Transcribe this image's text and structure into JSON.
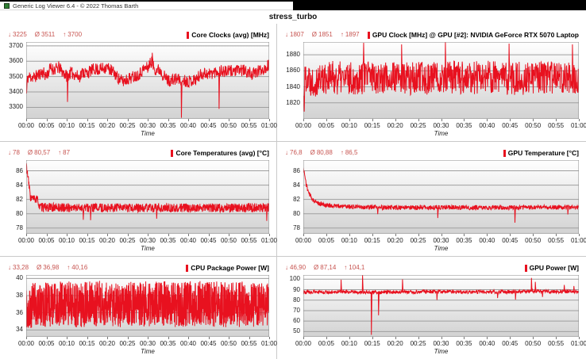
{
  "window": {
    "title": "Generic Log Viewer 6.4 - © 2022 Thomas Barth"
  },
  "heading": "stress_turbo",
  "symbols": {
    "min": "↓",
    "avg": "Ø",
    "max": "↑"
  },
  "colors": {
    "accent_red": "#e8111f",
    "stats_text": "#c75450",
    "gridline": "#9f9f9f",
    "plot_border": "#8a8a8a",
    "band_top": "#ffffff",
    "band_bottom": "#d2d2d2"
  },
  "time_axis": {
    "label": "Time",
    "ticks": [
      "00:00",
      "00:05",
      "00:10",
      "00:15",
      "00:20",
      "00:25",
      "00:30",
      "00:35",
      "00:40",
      "00:45",
      "00:50",
      "00:55",
      "01:00"
    ]
  },
  "charts": [
    {
      "title": "Core Clocks (avg) [MHz]",
      "stats": {
        "min": "3225",
        "avg": "3511",
        "max": "3700"
      },
      "chart_data": {
        "type": "line",
        "title": "Core Clocks (avg) [MHz]",
        "xlabel": "Time",
        "x_ticks": [
          "00:00",
          "00:05",
          "00:10",
          "00:15",
          "00:20",
          "00:25",
          "00:30",
          "00:35",
          "00:40",
          "00:45",
          "00:50",
          "00:55",
          "01:00"
        ],
        "x_range_minutes": [
          0,
          60
        ],
        "y_ticks": [
          3300,
          3400,
          3500,
          3600,
          3700
        ],
        "y_range": [
          3225,
          3725
        ],
        "stats": {
          "min": 3225,
          "avg": 3511,
          "max": 3700
        },
        "series_shape": {
          "base": [
            [
              0,
              3440
            ],
            [
              0.5,
              3500
            ],
            [
              2,
              3495
            ],
            [
              4,
              3530
            ],
            [
              5,
              3505
            ],
            [
              6,
              3555
            ],
            [
              7,
              3545
            ],
            [
              8,
              3560
            ],
            [
              9,
              3530
            ],
            [
              10,
              3505
            ],
            [
              11,
              3525
            ],
            [
              12,
              3515
            ],
            [
              13,
              3495
            ],
            [
              14,
              3530
            ],
            [
              15,
              3520
            ],
            [
              16,
              3540
            ],
            [
              17,
              3550
            ],
            [
              18,
              3545
            ],
            [
              19,
              3555
            ],
            [
              20,
              3560
            ],
            [
              21,
              3540
            ],
            [
              22,
              3515
            ],
            [
              23,
              3480
            ],
            [
              24,
              3470
            ],
            [
              25,
              3485
            ],
            [
              26,
              3495
            ],
            [
              27,
              3505
            ],
            [
              28,
              3520
            ],
            [
              29,
              3550
            ],
            [
              30,
              3560
            ],
            [
              31,
              3600
            ],
            [
              31.6,
              3555
            ],
            [
              32,
              3545
            ],
            [
              33,
              3545
            ],
            [
              34,
              3505
            ],
            [
              35,
              3475
            ],
            [
              36,
              3475
            ],
            [
              37,
              3485
            ],
            [
              38,
              3480
            ],
            [
              39,
              3475
            ],
            [
              40,
              3470
            ],
            [
              41,
              3475
            ],
            [
              42,
              3485
            ],
            [
              43,
              3510
            ],
            [
              44,
              3525
            ],
            [
              45,
              3515
            ],
            [
              46,
              3525
            ],
            [
              47,
              3535
            ],
            [
              48,
              3540
            ],
            [
              49,
              3530
            ],
            [
              50,
              3535
            ],
            [
              51,
              3540
            ],
            [
              52,
              3535
            ],
            [
              53,
              3545
            ],
            [
              54,
              3535
            ],
            [
              55,
              3525
            ],
            [
              56,
              3515
            ],
            [
              57,
              3530
            ],
            [
              58,
              3545
            ],
            [
              59,
              3555
            ],
            [
              60,
              3580
            ]
          ],
          "noise_amplitude": 40,
          "spikes": [
            [
              0.1,
              3390
            ],
            [
              10.2,
              3335
            ],
            [
              31.1,
              3655
            ],
            [
              38.3,
              3232
            ],
            [
              47.6,
              3290
            ]
          ],
          "samples": 800,
          "seed": 11,
          "clamp": [
            3225,
            3700
          ]
        }
      }
    },
    {
      "title": "GPU Clock [MHz] @ GPU [#2]: NVIDIA GeForce RTX 5070 Laptop",
      "stats": {
        "min": "1807",
        "avg": "1851",
        "max": "1897"
      },
      "chart_data": {
        "type": "line",
        "title": "GPU Clock [MHz] @ GPU [#2]: NVIDIA GeForce RTX 5070 Laptop",
        "xlabel": "Time",
        "x_ticks": [
          "00:00",
          "00:05",
          "00:10",
          "00:15",
          "00:20",
          "00:25",
          "00:30",
          "00:35",
          "00:40",
          "00:45",
          "00:50",
          "00:55",
          "01:00"
        ],
        "x_range_minutes": [
          0,
          60
        ],
        "y_ticks": [
          1820,
          1840,
          1860,
          1880
        ],
        "y_range": [
          1800,
          1896
        ],
        "stats": {
          "min": 1807,
          "avg": 1851,
          "max": 1897
        },
        "series_shape": {
          "base": [
            [
              0,
              1835
            ],
            [
              0.5,
              1855
            ],
            [
              2,
              1848
            ],
            [
              5,
              1852
            ],
            [
              10,
              1850
            ],
            [
              15,
              1853
            ],
            [
              20,
              1851
            ],
            [
              25,
              1850
            ],
            [
              30,
              1853
            ],
            [
              35,
              1851
            ],
            [
              40,
              1852
            ],
            [
              45,
              1850
            ],
            [
              50,
              1851
            ],
            [
              55,
              1852
            ],
            [
              60,
              1852
            ]
          ],
          "noise_amplitude": 21,
          "spikes": [
            [
              0.2,
              1809
            ],
            [
              13.1,
              1895
            ],
            [
              21.4,
              1893
            ],
            [
              30.9,
              1896
            ],
            [
              44.8,
              1894
            ],
            [
              58.6,
              1893
            ]
          ],
          "samples": 900,
          "seed": 22,
          "clamp": [
            1807,
            1897
          ]
        }
      }
    },
    {
      "title": "Core Temperatures (avg) [°C]",
      "stats": {
        "min": "78",
        "avg": "80,57",
        "max": "87"
      },
      "chart_data": {
        "type": "line",
        "title": "Core Temperatures (avg) [°C]",
        "xlabel": "Time",
        "x_ticks": [
          "00:00",
          "00:05",
          "00:10",
          "00:15",
          "00:20",
          "00:25",
          "00:30",
          "00:35",
          "00:40",
          "00:45",
          "00:50",
          "00:55",
          "01:00"
        ],
        "x_range_minutes": [
          0,
          60
        ],
        "y_ticks": [
          78,
          80,
          82,
          84,
          86
        ],
        "y_range": [
          77.2,
          87.5
        ],
        "stats": {
          "min": 78,
          "avg": 80.57,
          "max": 87
        },
        "series_shape": {
          "base": [
            [
              0,
              87
            ],
            [
              0.4,
              85.2
            ],
            [
              0.8,
              83.5
            ],
            [
              1.1,
              82.2
            ],
            [
              2.9,
              81.9
            ],
            [
              3.3,
              80.9
            ],
            [
              10,
              80.85
            ],
            [
              30,
              80.8
            ],
            [
              60,
              80.85
            ]
          ],
          "noise_amplitude": 0.62,
          "spikes": [
            [
              14.1,
              79.15
            ],
            [
              15.9,
              79.1
            ],
            [
              32.2,
              79.3
            ],
            [
              59.4,
              79.0
            ]
          ],
          "samples": 1000,
          "seed": 33,
          "clamp": [
            78.9,
            87
          ]
        }
      }
    },
    {
      "title": "GPU Temperature [°C]",
      "stats": {
        "min": "76,8",
        "avg": "80,88",
        "max": "86,5"
      },
      "chart_data": {
        "type": "line",
        "title": "GPU Temperature [°C]",
        "xlabel": "Time",
        "x_ticks": [
          "00:00",
          "00:05",
          "00:10",
          "00:15",
          "00:20",
          "00:25",
          "00:30",
          "00:35",
          "00:40",
          "00:45",
          "00:50",
          "00:55",
          "01:00"
        ],
        "x_range_minutes": [
          0,
          60
        ],
        "y_ticks": [
          78,
          80,
          82,
          84,
          86
        ],
        "y_range": [
          77.2,
          87.5
        ],
        "stats": {
          "min": 76.8,
          "avg": 80.88,
          "max": 86.5
        },
        "series_shape": {
          "base": [
            [
              0,
              86.5
            ],
            [
              0.3,
              85.4
            ],
            [
              0.7,
              83.9
            ],
            [
              1.2,
              82.9
            ],
            [
              1.8,
              82.2
            ],
            [
              2.5,
              81.7
            ],
            [
              3.5,
              81.4
            ],
            [
              5,
              81.2
            ],
            [
              8,
              81.05
            ],
            [
              12,
              80.95
            ],
            [
              20,
              80.85
            ],
            [
              30,
              80.9
            ],
            [
              40,
              80.85
            ],
            [
              50,
              80.9
            ],
            [
              60,
              80.9
            ]
          ],
          "noise_amplitude": 0.32,
          "spikes": [
            [
              16.2,
              79.95
            ],
            [
              29.3,
              79.4
            ],
            [
              46.1,
              78.75
            ],
            [
              57.6,
              79.9
            ]
          ],
          "samples": 1000,
          "seed": 44,
          "clamp": [
            76.8,
            86.5
          ]
        }
      }
    },
    {
      "title": "CPU Package Power [W]",
      "stats": {
        "min": "33,28",
        "avg": "36,98",
        "max": "40,16"
      },
      "chart_data": {
        "type": "line",
        "title": "CPU Package Power [W]",
        "xlabel": "Time",
        "x_ticks": [
          "00:00",
          "00:05",
          "00:10",
          "00:15",
          "00:20",
          "00:25",
          "00:30",
          "00:35",
          "00:40",
          "00:45",
          "00:50",
          "00:55",
          "01:00"
        ],
        "x_range_minutes": [
          0,
          60
        ],
        "y_ticks": [
          34,
          36,
          38,
          40
        ],
        "y_range": [
          33.2,
          40.4
        ],
        "stats": {
          "min": 33.28,
          "avg": 36.98,
          "max": 40.16
        },
        "series_shape": {
          "base": [
            [
              0,
              36.6
            ],
            [
              3,
              37
            ],
            [
              6,
              36.9
            ],
            [
              9,
              37.1
            ],
            [
              12,
              36.9
            ],
            [
              15,
              37.0
            ],
            [
              18,
              37.1
            ],
            [
              21,
              36.9
            ],
            [
              24,
              37.0
            ],
            [
              27,
              37.1
            ],
            [
              30,
              37.0
            ],
            [
              33,
              37.1
            ],
            [
              36,
              36.9
            ],
            [
              39,
              37.0
            ],
            [
              42,
              37.1
            ],
            [
              45,
              37.0
            ],
            [
              48,
              37.0
            ],
            [
              51,
              36.9
            ],
            [
              54,
              37.0
            ],
            [
              57,
              36.9
            ],
            [
              60,
              37.0
            ]
          ],
          "noise_amplitude": 2.65,
          "spikes": [],
          "samples": 1500,
          "seed": 55,
          "clamp": [
            33.28,
            40.16
          ]
        }
      }
    },
    {
      "title": "GPU Power [W]",
      "stats": {
        "min": "46,90",
        "avg": "87,14",
        "max": "104,1"
      },
      "chart_data": {
        "type": "line",
        "title": "GPU Power [W]",
        "xlabel": "Time",
        "x_ticks": [
          "00:00",
          "00:05",
          "00:10",
          "00:15",
          "00:20",
          "00:25",
          "00:30",
          "00:35",
          "00:40",
          "00:45",
          "00:50",
          "00:55",
          "01:00"
        ],
        "x_range_minutes": [
          0,
          60
        ],
        "y_ticks": [
          50,
          60,
          70,
          80,
          90,
          100
        ],
        "y_range": [
          45,
          104
        ],
        "stats": {
          "min": 46.9,
          "avg": 87.14,
          "max": 104.1
        },
        "series_shape": {
          "base": [
            [
              0,
              87.8
            ],
            [
              5,
              87.8
            ],
            [
              10,
              88
            ],
            [
              15,
              87.5
            ],
            [
              20,
              87.8
            ],
            [
              25,
              88
            ],
            [
              30,
              88
            ],
            [
              35,
              87.8
            ],
            [
              40,
              88
            ],
            [
              45,
              88
            ],
            [
              50,
              88.5
            ],
            [
              55,
              88.2
            ],
            [
              60,
              88.2
            ]
          ],
          "noise_amplitude": 1.7,
          "spikes": [
            [
              8.2,
              99.5
            ],
            [
              12.9,
              104.1
            ],
            [
              14.8,
              46.9
            ],
            [
              16.4,
              65.5
            ],
            [
              21.6,
              99.8
            ],
            [
              29.1,
              80.2
            ],
            [
              42.3,
              82
            ],
            [
              46.2,
              80.5
            ],
            [
              49.7,
              101.2
            ],
            [
              50.5,
              97.5
            ],
            [
              52.1,
              83
            ],
            [
              56.8,
              94.5
            ],
            [
              58.9,
              93.5
            ]
          ],
          "samples": 1000,
          "seed": 66,
          "clamp": [
            46.9,
            104.1
          ]
        }
      }
    }
  ]
}
